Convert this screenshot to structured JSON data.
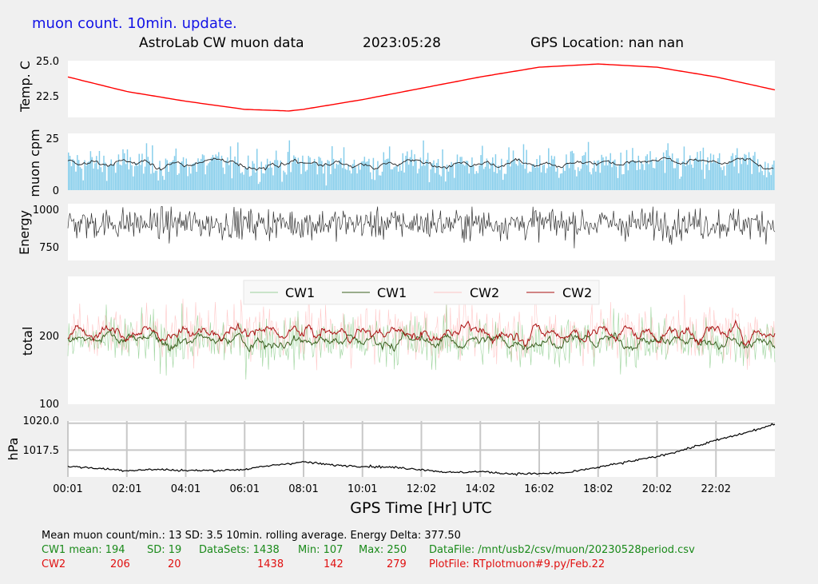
{
  "header": {
    "subtitle": "muon count.  10min. update.",
    "title": "AstroLab CW muon data",
    "date": "2023:05:28",
    "gps_location": "GPS Location: nan   nan"
  },
  "colors": {
    "subtitle": "#1414e6",
    "temp_line": "#ff0000",
    "muon_bars": "#87ceeb",
    "muon_avg": "#222222",
    "energy": "#333333",
    "cw1_raw": "#5cb85c",
    "cw1_avg": "#3a5f1e",
    "cw2_raw": "#ffb0b0",
    "cw2_avg": "#aa1111",
    "pressure": "#000000",
    "green_text": "#1a8a1a",
    "red_text": "#e01010"
  },
  "chart_data": [
    {
      "type": "line",
      "ylabel": "Temp. C",
      "yticks": [
        "25.0",
        "22.5"
      ],
      "ylim": [
        21.5,
        25.0
      ],
      "series": [
        {
          "x": [
            0,
            2,
            4,
            6,
            7.5,
            8,
            10,
            12,
            14,
            16,
            18,
            20,
            22,
            24
          ],
          "values": [
            24.0,
            23.1,
            22.5,
            22.0,
            21.9,
            22.0,
            22.6,
            23.3,
            24.0,
            24.6,
            24.8,
            24.6,
            24.0,
            23.2
          ]
        }
      ]
    },
    {
      "type": "bar",
      "ylabel": "muon cpm",
      "yticks": [
        "25",
        "0"
      ],
      "ylim": [
        0,
        28
      ],
      "mean": 13,
      "sd": 3.5,
      "rolling_average": "10min."
    },
    {
      "type": "line",
      "ylabel": "Energy",
      "yticks": [
        "1000",
        "750"
      ],
      "ylim": [
        640,
        1040
      ],
      "mean": 900,
      "delta": 377.5
    },
    {
      "type": "line",
      "ylabel": "total",
      "yticks": [
        "200",
        "100"
      ],
      "ylim": [
        100,
        290
      ],
      "legend": [
        "CW1",
        "CW1",
        "CW2",
        "CW2"
      ],
      "legend_position": "top-center",
      "series": [
        {
          "name": "CW1",
          "mean": 194,
          "sd": 19,
          "min": 107,
          "max": 250
        },
        {
          "name": "CW2",
          "mean": 206,
          "sd": 20,
          "min": 142,
          "max": 279
        }
      ]
    },
    {
      "type": "line",
      "ylabel": "hPa",
      "yticks": [
        "1020.0",
        "1017.5"
      ],
      "ylim": [
        1015.0,
        1020.2
      ],
      "grid": true,
      "series": [
        {
          "x": [
            0,
            1,
            2,
            3,
            4,
            5,
            6,
            7,
            8,
            9,
            10,
            11,
            12,
            13,
            14,
            15,
            16,
            17,
            18,
            19,
            20,
            21,
            22,
            23,
            24
          ],
          "values": [
            1016.0,
            1015.8,
            1015.6,
            1015.7,
            1015.6,
            1015.6,
            1015.7,
            1016.1,
            1016.4,
            1016.1,
            1016.0,
            1015.9,
            1015.7,
            1015.4,
            1015.5,
            1015.3,
            1015.3,
            1015.4,
            1015.9,
            1016.4,
            1016.9,
            1017.6,
            1018.4,
            1019.1,
            1019.9
          ]
        }
      ],
      "xlabel": "GPS Time  [Hr] UTC",
      "xticks": [
        "00:01",
        "02:01",
        "04:01",
        "06:01",
        "08:01",
        "10:01",
        "12:02",
        "14:02",
        "16:02",
        "18:02",
        "20:02",
        "22:02"
      ],
      "xlim": [
        0,
        24
      ]
    }
  ],
  "stats": {
    "line1": "Mean muon count/min.: 13  SD: 3.5   10min. rolling average.    Energy Delta:  377.50",
    "cw1": {
      "name": "CW1 mean: 194",
      "sd": "SD: 19",
      "datasets": "DataSets: 1438",
      "min": "Min: 107",
      "max": "Max: 250",
      "file": "DataFile: /mnt/usb2/csv/muon/20230528period.csv"
    },
    "cw2": {
      "name": "CW2",
      "mean": "206",
      "sd": "20",
      "datasets": "1438",
      "min": "142",
      "max": "279",
      "file": "PlotFile: RTplotmuon#9.py/Feb.22"
    }
  }
}
